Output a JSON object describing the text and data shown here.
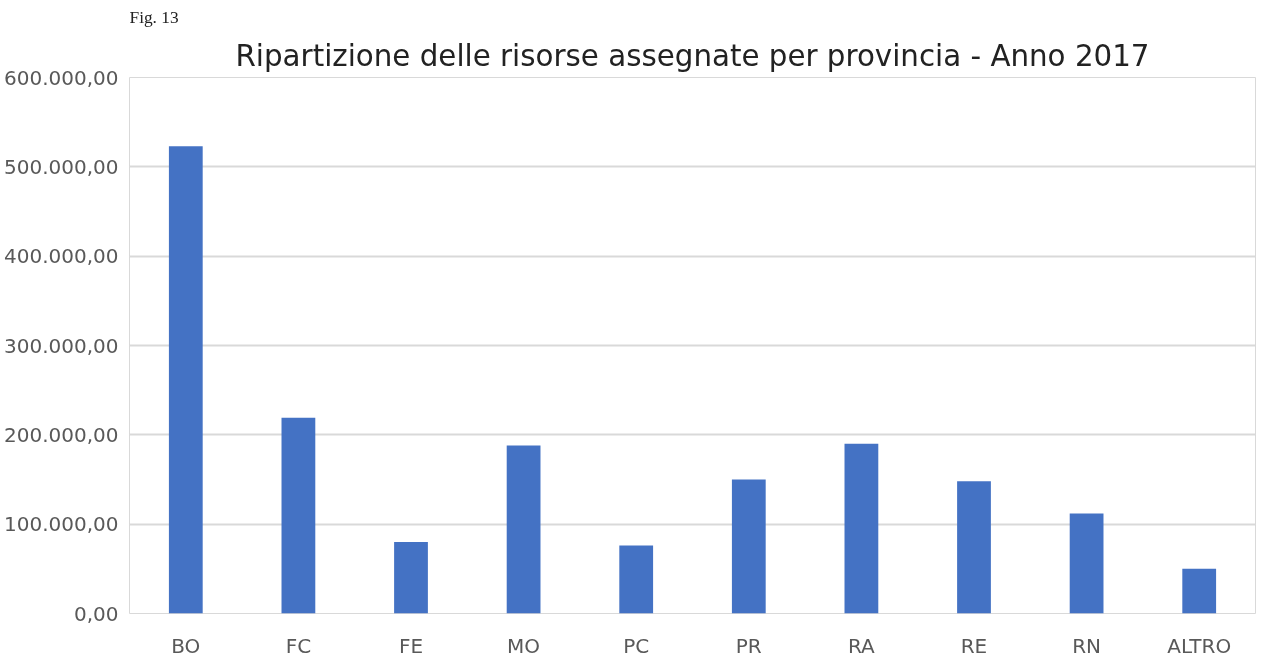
{
  "chart_data": {
    "type": "bar",
    "title": "Ripartizione delle risorse assegnate per provincia - Anno 2017",
    "annotations": [
      "Fig. 13"
    ],
    "categories": [
      "BO",
      "FC",
      "FE",
      "MO",
      "PC",
      "PR",
      "RA",
      "RE",
      "RN",
      "ALTRO"
    ],
    "values": [
      523000,
      219000,
      80000,
      188000,
      76000,
      150000,
      190000,
      148000,
      112000,
      50000
    ],
    "color": "#4472c4",
    "ylim": [
      0,
      600000
    ],
    "yticks": [
      {
        "value": 0,
        "label": "0,00"
      },
      {
        "value": 100000,
        "label": "100.000,00"
      },
      {
        "value": 200000,
        "label": "200.000,00"
      },
      {
        "value": 300000,
        "label": "300.000,00"
      },
      {
        "value": 400000,
        "label": "400.000,00"
      },
      {
        "value": 500000,
        "label": "500.000,00"
      },
      {
        "value": 600000,
        "label": "600.000,00"
      }
    ],
    "grid": "y"
  }
}
